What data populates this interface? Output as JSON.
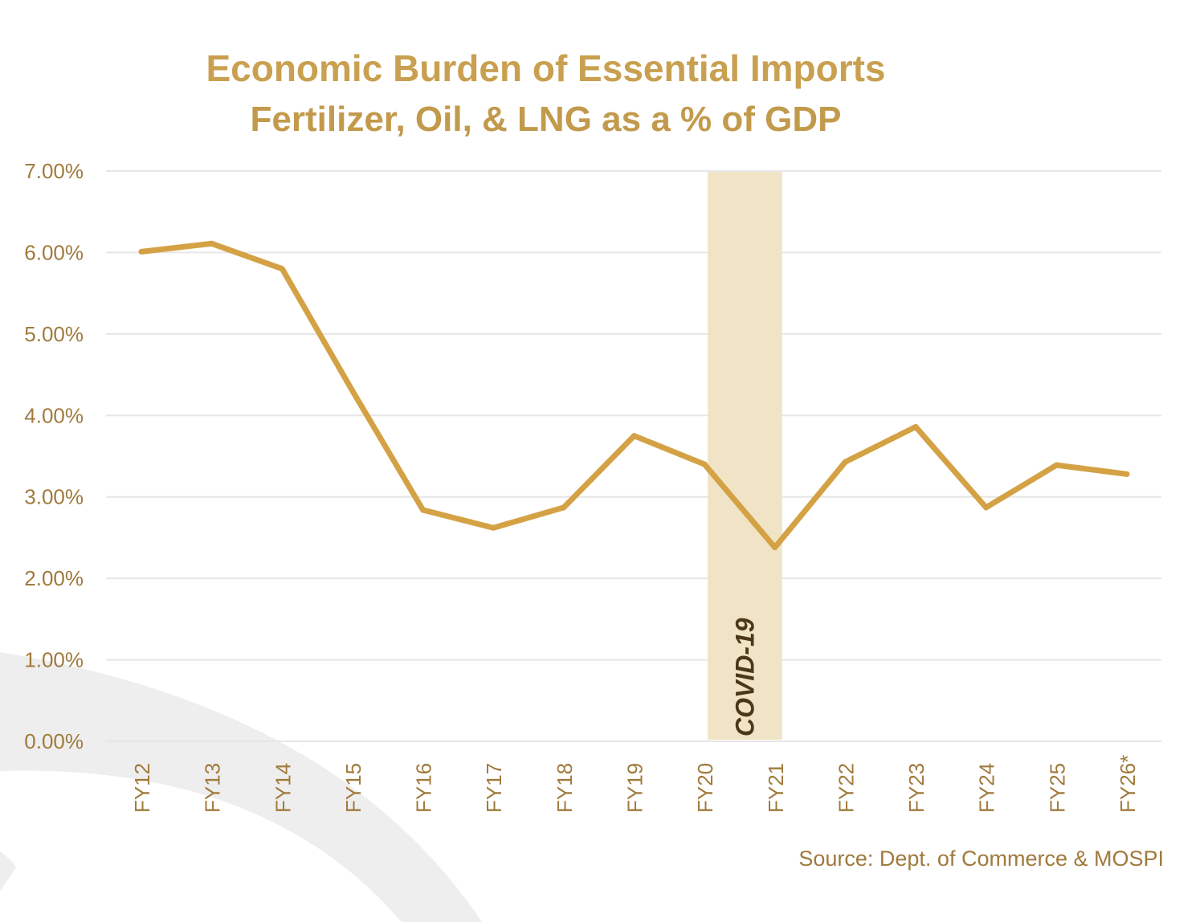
{
  "title": "Economic Burden of Essential Imports",
  "subtitle": "Fertilizer, Oil, & LNG as a % of GDP",
  "source": "Source:  Dept. of Commerce & MOSPI",
  "colors": {
    "line": "#d4a245",
    "title": "#c9a050",
    "axis_text": "#a07a3c",
    "band": "#f1e3c6",
    "grid": "#e6e6e6"
  },
  "chart_data": {
    "type": "line",
    "title": "Economic Burden of Essential Imports",
    "subtitle": "Fertilizer, Oil, & LNG as a % of GDP",
    "categories": [
      "FY12",
      "FY13",
      "FY14",
      "FY15",
      "FY16",
      "FY17",
      "FY18",
      "FY19",
      "FY20",
      "FY21",
      "FY22",
      "FY23",
      "FY24",
      "FY25",
      "FY26*"
    ],
    "series": [
      {
        "values": [
          6.01,
          6.11,
          5.8,
          4.3,
          2.84,
          2.62,
          2.87,
          3.75,
          3.4,
          2.38,
          3.43,
          3.86,
          2.87,
          3.39,
          3.28
        ]
      }
    ],
    "yticks": [
      "0.00%",
      "1.00%",
      "2.00%",
      "3.00%",
      "4.00%",
      "5.00%",
      "6.00%",
      "7.00%"
    ],
    "ylim": [
      0,
      7
    ],
    "grid": true,
    "legend": false,
    "annotation": {
      "label": "COVID-19",
      "from": "FY20",
      "to": "FY21"
    }
  }
}
